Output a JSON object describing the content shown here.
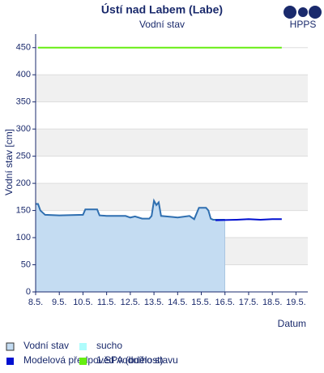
{
  "logo": "HPPS",
  "chart_data": {
    "type": "line",
    "title": "Ústí nad Labem (Labe)",
    "subtitle": "Vodní stav",
    "y_label": "Vodní stav [cm]",
    "x_label": "Datum",
    "xlim": [
      8,
      19.5
    ],
    "xticks": [
      {
        "value": 8,
        "label": "8.5."
      },
      {
        "value": 9,
        "label": "9.5."
      },
      {
        "value": 10,
        "label": "10.5."
      },
      {
        "value": 11,
        "label": "11.5."
      },
      {
        "value": 12,
        "label": "12.5."
      },
      {
        "value": 13,
        "label": "13.5."
      },
      {
        "value": 14,
        "label": "14.5."
      },
      {
        "value": 15,
        "label": "15.5."
      },
      {
        "value": 16,
        "label": "16.5."
      },
      {
        "value": 17,
        "label": "17.5."
      },
      {
        "value": 18,
        "label": "18.5."
      },
      {
        "value": 19,
        "label": "19.5."
      }
    ],
    "ylim": [
      0,
      475
    ],
    "yticks": [
      0,
      50,
      100,
      150,
      200,
      250,
      300,
      350,
      400,
      450
    ],
    "grid": true,
    "series": [
      {
        "name": "Vodní stav",
        "color": "#2f6fb0",
        "fill": "#c4dcf2",
        "area": true,
        "x": [
          8.0,
          8.1,
          8.2,
          8.4,
          9.0,
          10.0,
          10.1,
          10.6,
          10.7,
          11.0,
          11.8,
          12.0,
          12.2,
          12.5,
          12.8,
          12.9,
          13.0,
          13.1,
          13.2,
          13.3,
          13.8,
          14.0,
          14.5,
          14.7,
          14.9,
          15.2,
          15.3,
          15.4,
          15.5,
          16.0
        ],
        "values": [
          162,
          162,
          150,
          142,
          141,
          142,
          152,
          152,
          141,
          140,
          140,
          137,
          139,
          135,
          135,
          140,
          168,
          160,
          165,
          140,
          138,
          137,
          140,
          134,
          155,
          155,
          150,
          135,
          133,
          133
        ]
      },
      {
        "name": "sucho",
        "color": "#aefcfc"
      },
      {
        "name": "Modelová předpověď vodního stavu",
        "color": "#0010d0",
        "x": [
          15.6,
          16.5,
          17.0,
          17.5,
          18.0,
          18.4
        ],
        "values": [
          132,
          133,
          134,
          133,
          134,
          134
        ]
      },
      {
        "name": "1.SPA (bdělost)",
        "color": "#66ee11",
        "x": [
          8.1,
          18.4
        ],
        "values": [
          450,
          450
        ]
      }
    ]
  }
}
